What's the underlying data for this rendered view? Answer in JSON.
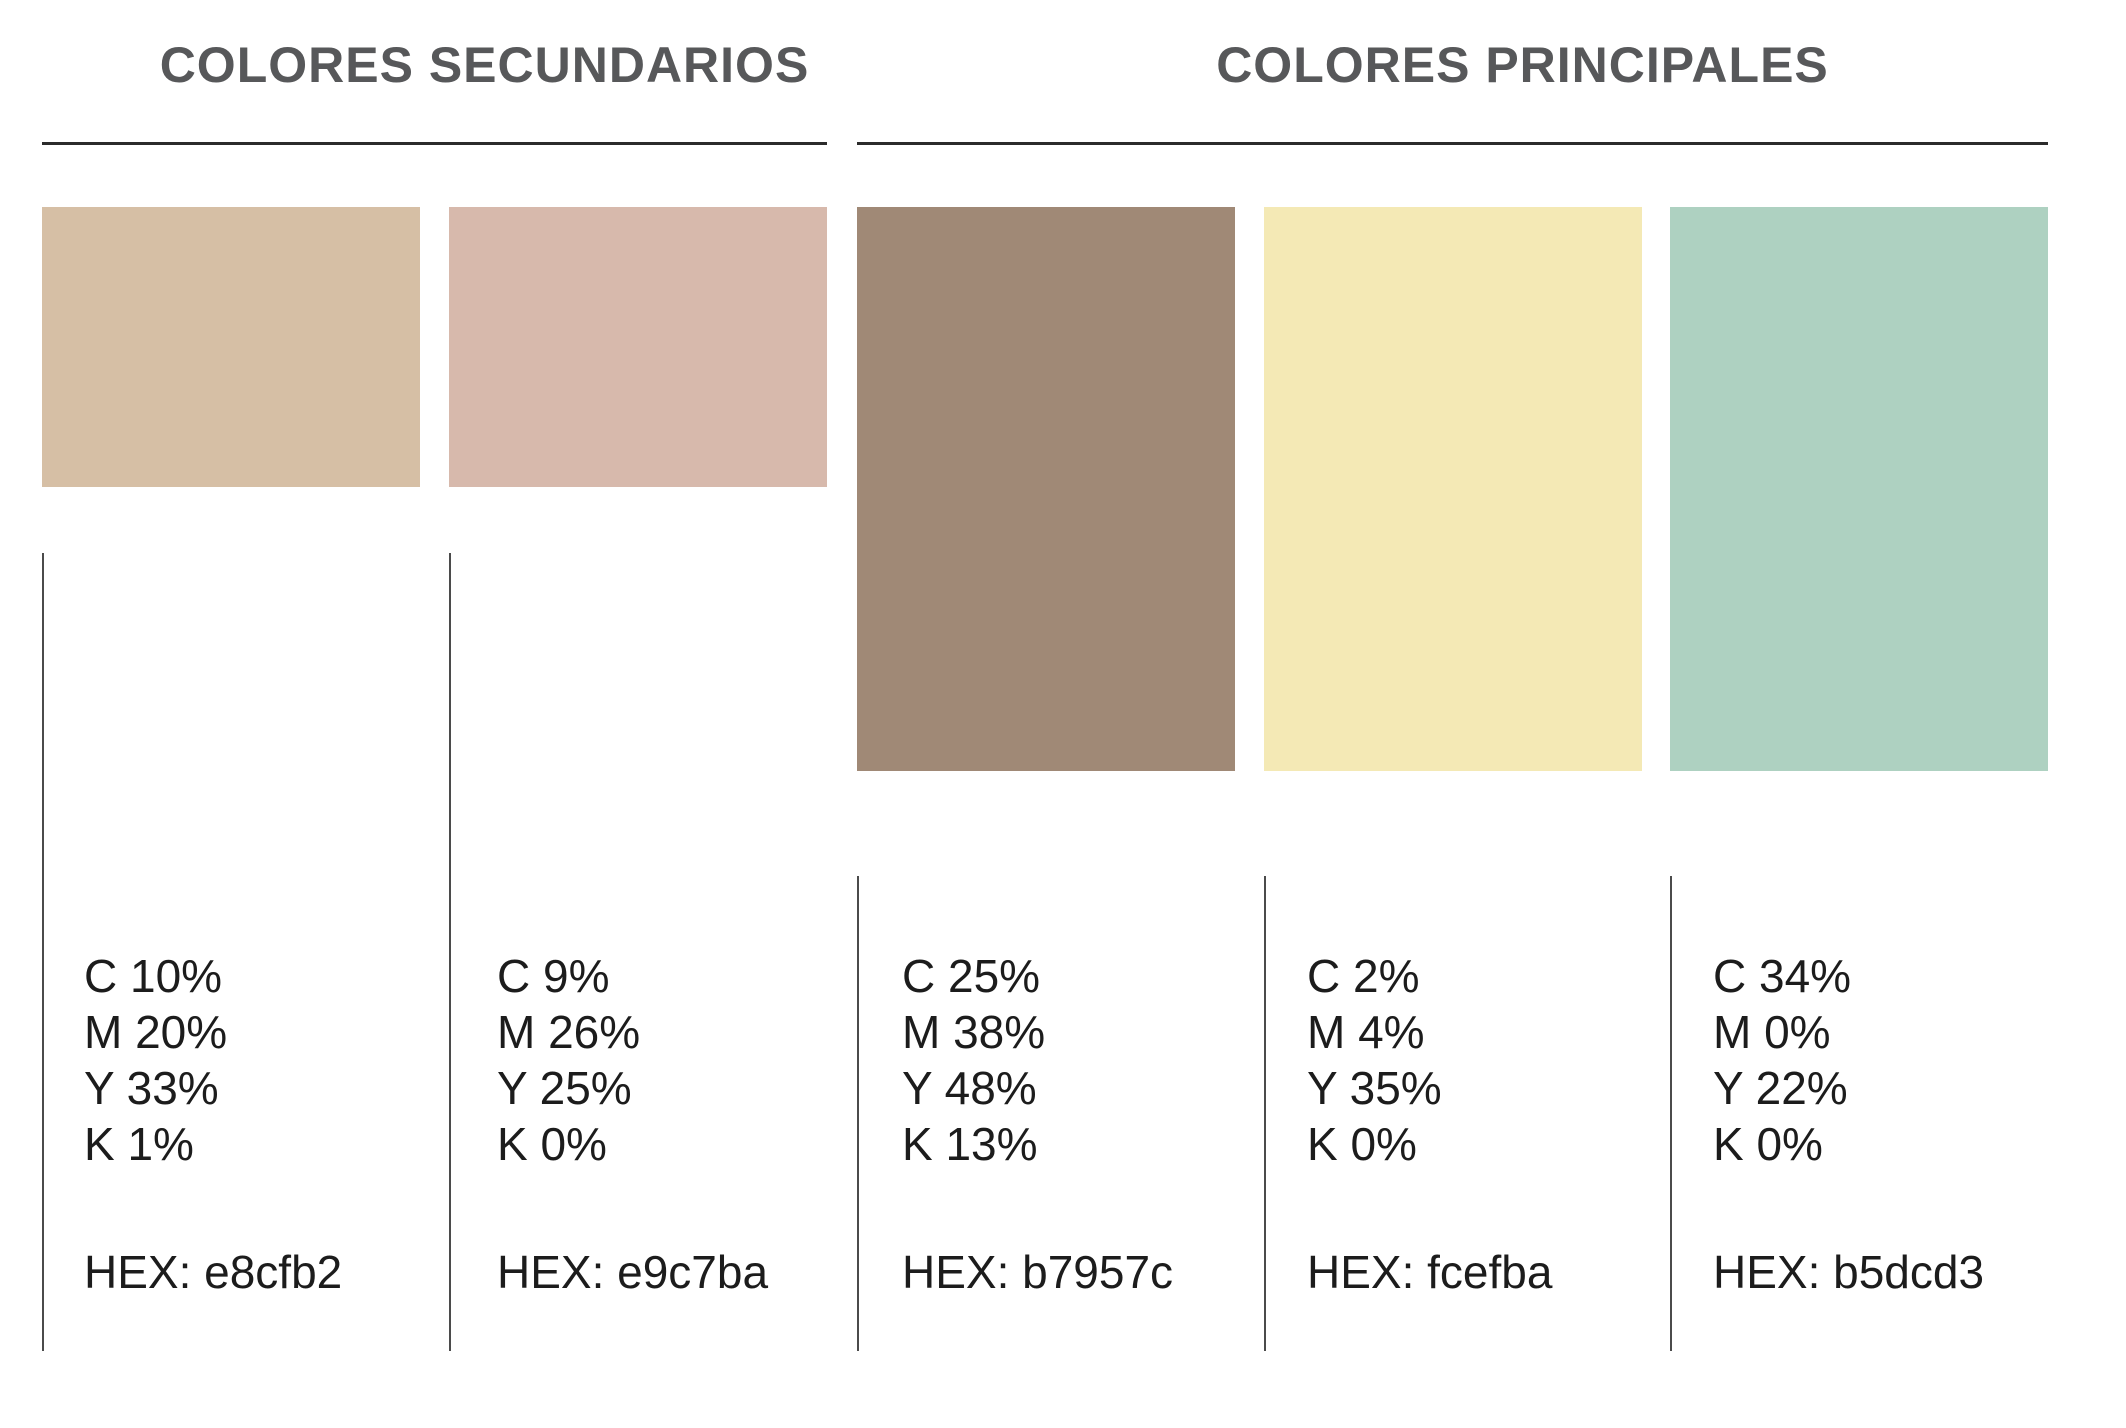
{
  "sections": [
    {
      "title": "COLORES SECUNDARIOS",
      "swatches": [
        {
          "name": "beige",
          "swatch_color": "#d6bfa5",
          "cmyk": [
            "C 10%",
            "M 20%",
            "Y 33%",
            "K 1%"
          ],
          "hex_label": "HEX: e8cfb2"
        },
        {
          "name": "rose",
          "swatch_color": "#d7b9ac",
          "cmyk": [
            "C 9%",
            "M 26%",
            "Y 25%",
            "K 0%"
          ],
          "hex_label": "HEX: e9c7ba"
        }
      ]
    },
    {
      "title": "COLORES PRINCIPALES",
      "swatches": [
        {
          "name": "brown",
          "swatch_color": "#a08976",
          "cmyk": [
            "C 25%",
            "M 38%",
            "Y 48%",
            "K 13%"
          ],
          "hex_label": "HEX: b7957c"
        },
        {
          "name": "pale-yellow",
          "swatch_color": "#f4e9b5",
          "cmyk": [
            "C 2%",
            "M 4%",
            "Y 35%",
            "K 0%"
          ],
          "hex_label": "HEX: fcefba"
        },
        {
          "name": "mint",
          "swatch_color": "#aed1c1",
          "cmyk": [
            "C 34%",
            "M 0%",
            "Y 22%",
            "K 0%"
          ],
          "hex_label": "HEX: b5dcd3"
        }
      ]
    }
  ],
  "ui_colors": {
    "header_text": "#57585a",
    "header_rule": "#2b2b2b",
    "divider_line": "#4b4b4b",
    "body_text": "#1c1c1c",
    "background": "#ffffff"
  }
}
